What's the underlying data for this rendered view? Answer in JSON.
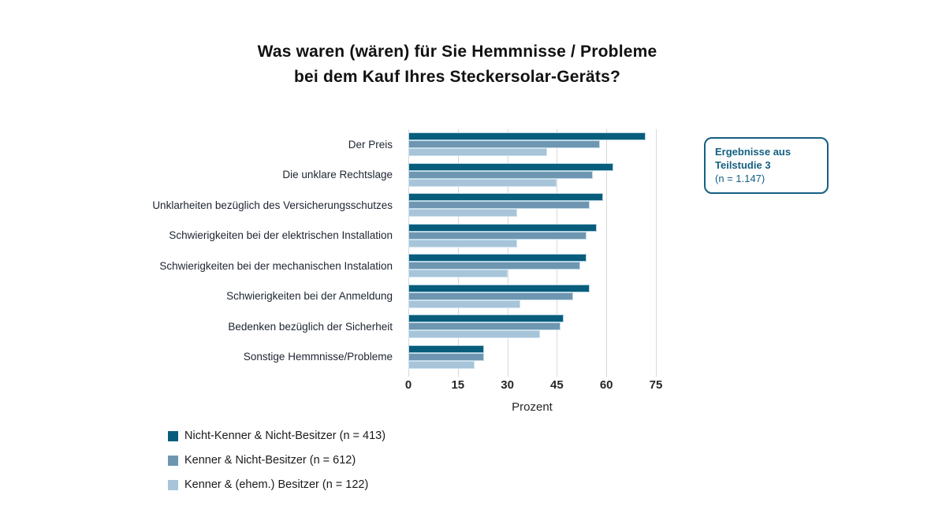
{
  "title": {
    "line1": "Was waren (wären) für Sie Hemmnisse / Probleme",
    "line2": "bei dem Kauf Ihres Steckersolar-Geräts?"
  },
  "chart_data": {
    "type": "bar",
    "orientation": "horizontal",
    "title": "Was waren (wären) für Sie Hemmnisse / Probleme bei dem Kauf Ihres Steckersolar-Geräts?",
    "categories": [
      "Der Preis",
      "Die unklare Rechtslage",
      "Unklarheiten bezüglich des Versicherungsschutzes",
      "Schwierigkeiten bei der elektrischen Installation",
      "Schwierigkeiten bei der mechanischen Instalation",
      "Schwierigkeiten bei der Anmeldung",
      "Bedenken bezüglich der Sicherheit",
      "Sonstige Hemmnisse/Probleme"
    ],
    "series": [
      {
        "name": "Nicht-Kenner & Nicht-Besitzer (n = 413)",
        "color": "#095d7c",
        "values": [
          72,
          62,
          59,
          57,
          54,
          55,
          47,
          23
        ]
      },
      {
        "name": "Kenner & Nicht-Besitzer (n = 612)",
        "color": "#6e96b1",
        "values": [
          58,
          56,
          55,
          54,
          52,
          50,
          46,
          23
        ]
      },
      {
        "name": "Kenner & (ehem.) Besitzer (n = 122)",
        "color": "#a7c4d9",
        "values": [
          42,
          45,
          33,
          33,
          30,
          34,
          40,
          20
        ]
      }
    ],
    "xlabel": "Prozent",
    "ylabel": "",
    "xlim": [
      0,
      75
    ],
    "xticks": [
      0,
      15,
      30,
      45,
      60,
      75
    ],
    "grid": "vertical",
    "gridline_color": "#d9d9d9",
    "legend_position": "bottom-left"
  },
  "annotation_box": {
    "line1": "Ergebnisse aus",
    "line2": "Teilstudie 3",
    "line3": "(n = 1.147)",
    "accent_color": "#156082"
  }
}
